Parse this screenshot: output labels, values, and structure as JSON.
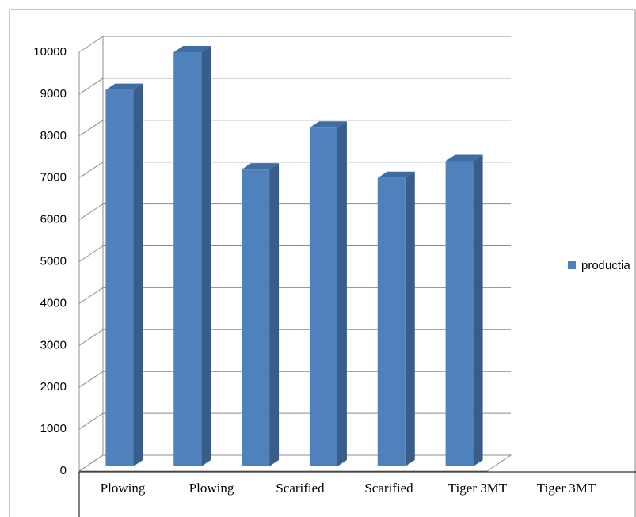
{
  "chart_data": {
    "type": "bar3d",
    "categories": [
      "Plowing",
      "Plowing",
      "Scarified",
      "Scarified",
      "Tiger 3MT",
      "Tiger 3MT"
    ],
    "series": [
      {
        "name": "productia",
        "color": "#4f81bd",
        "values": [
          9100,
          10000,
          7200,
          8200,
          7000,
          7400
        ]
      }
    ],
    "ylim": [
      0,
      10000
    ],
    "yticks": [
      0,
      1000,
      2000,
      3000,
      4000,
      5000,
      6000,
      7000,
      8000,
      9000,
      10000
    ],
    "grid": true,
    "legend": "right"
  }
}
